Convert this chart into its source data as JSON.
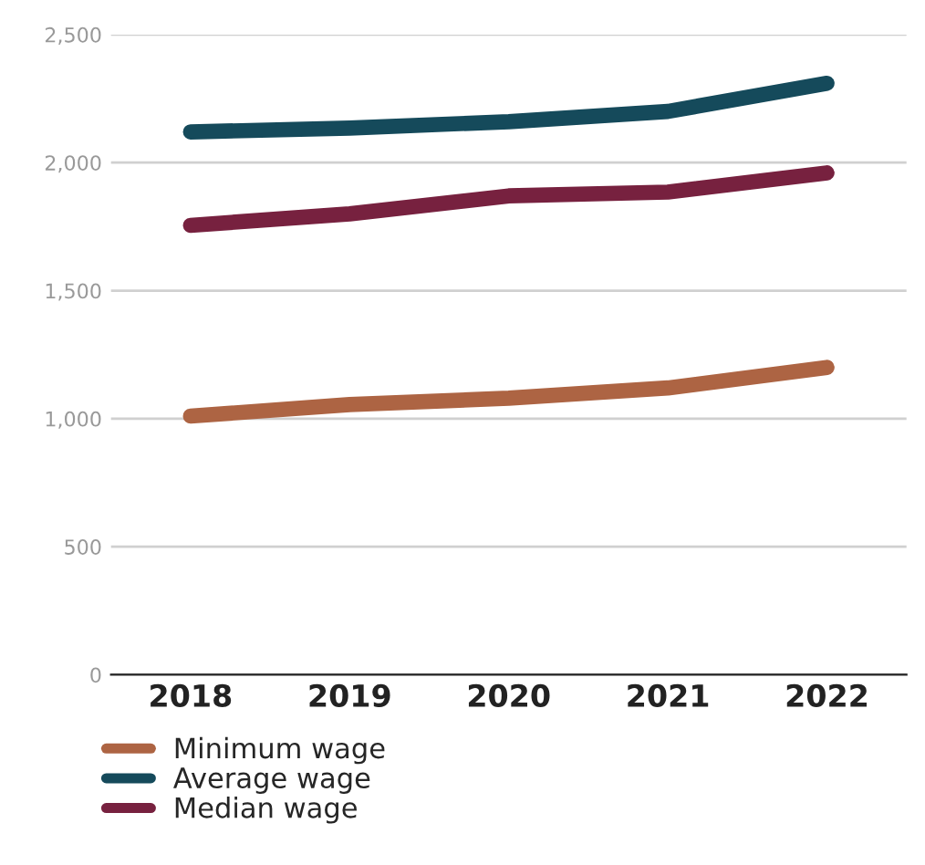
{
  "chart_data": {
    "type": "line",
    "categories": [
      "2018",
      "2019",
      "2020",
      "2021",
      "2022"
    ],
    "series": [
      {
        "name": "Minimum wage",
        "color": "#ad6443",
        "values": [
          1010,
          1055,
          1080,
          1120,
          1200
        ]
      },
      {
        "name": "Average wage",
        "color": "#154a5b",
        "values": [
          2120,
          2135,
          2160,
          2200,
          2310
        ]
      },
      {
        "name": "Median wage",
        "color": "#77213f",
        "values": [
          1755,
          1800,
          1870,
          1885,
          1960
        ]
      }
    ],
    "ylim": [
      0,
      2500
    ],
    "yticks": [
      {
        "value": 0,
        "label": "0"
      },
      {
        "value": 500,
        "label": "500"
      },
      {
        "value": 1000,
        "label": "1,000"
      },
      {
        "value": 1500,
        "label": "1,500"
      },
      {
        "value": 2000,
        "label": "2,000"
      },
      {
        "value": 2500,
        "label": "2,500"
      }
    ],
    "grid": "y",
    "legend": "bottom left",
    "marker": "none",
    "line_style": "solid"
  }
}
